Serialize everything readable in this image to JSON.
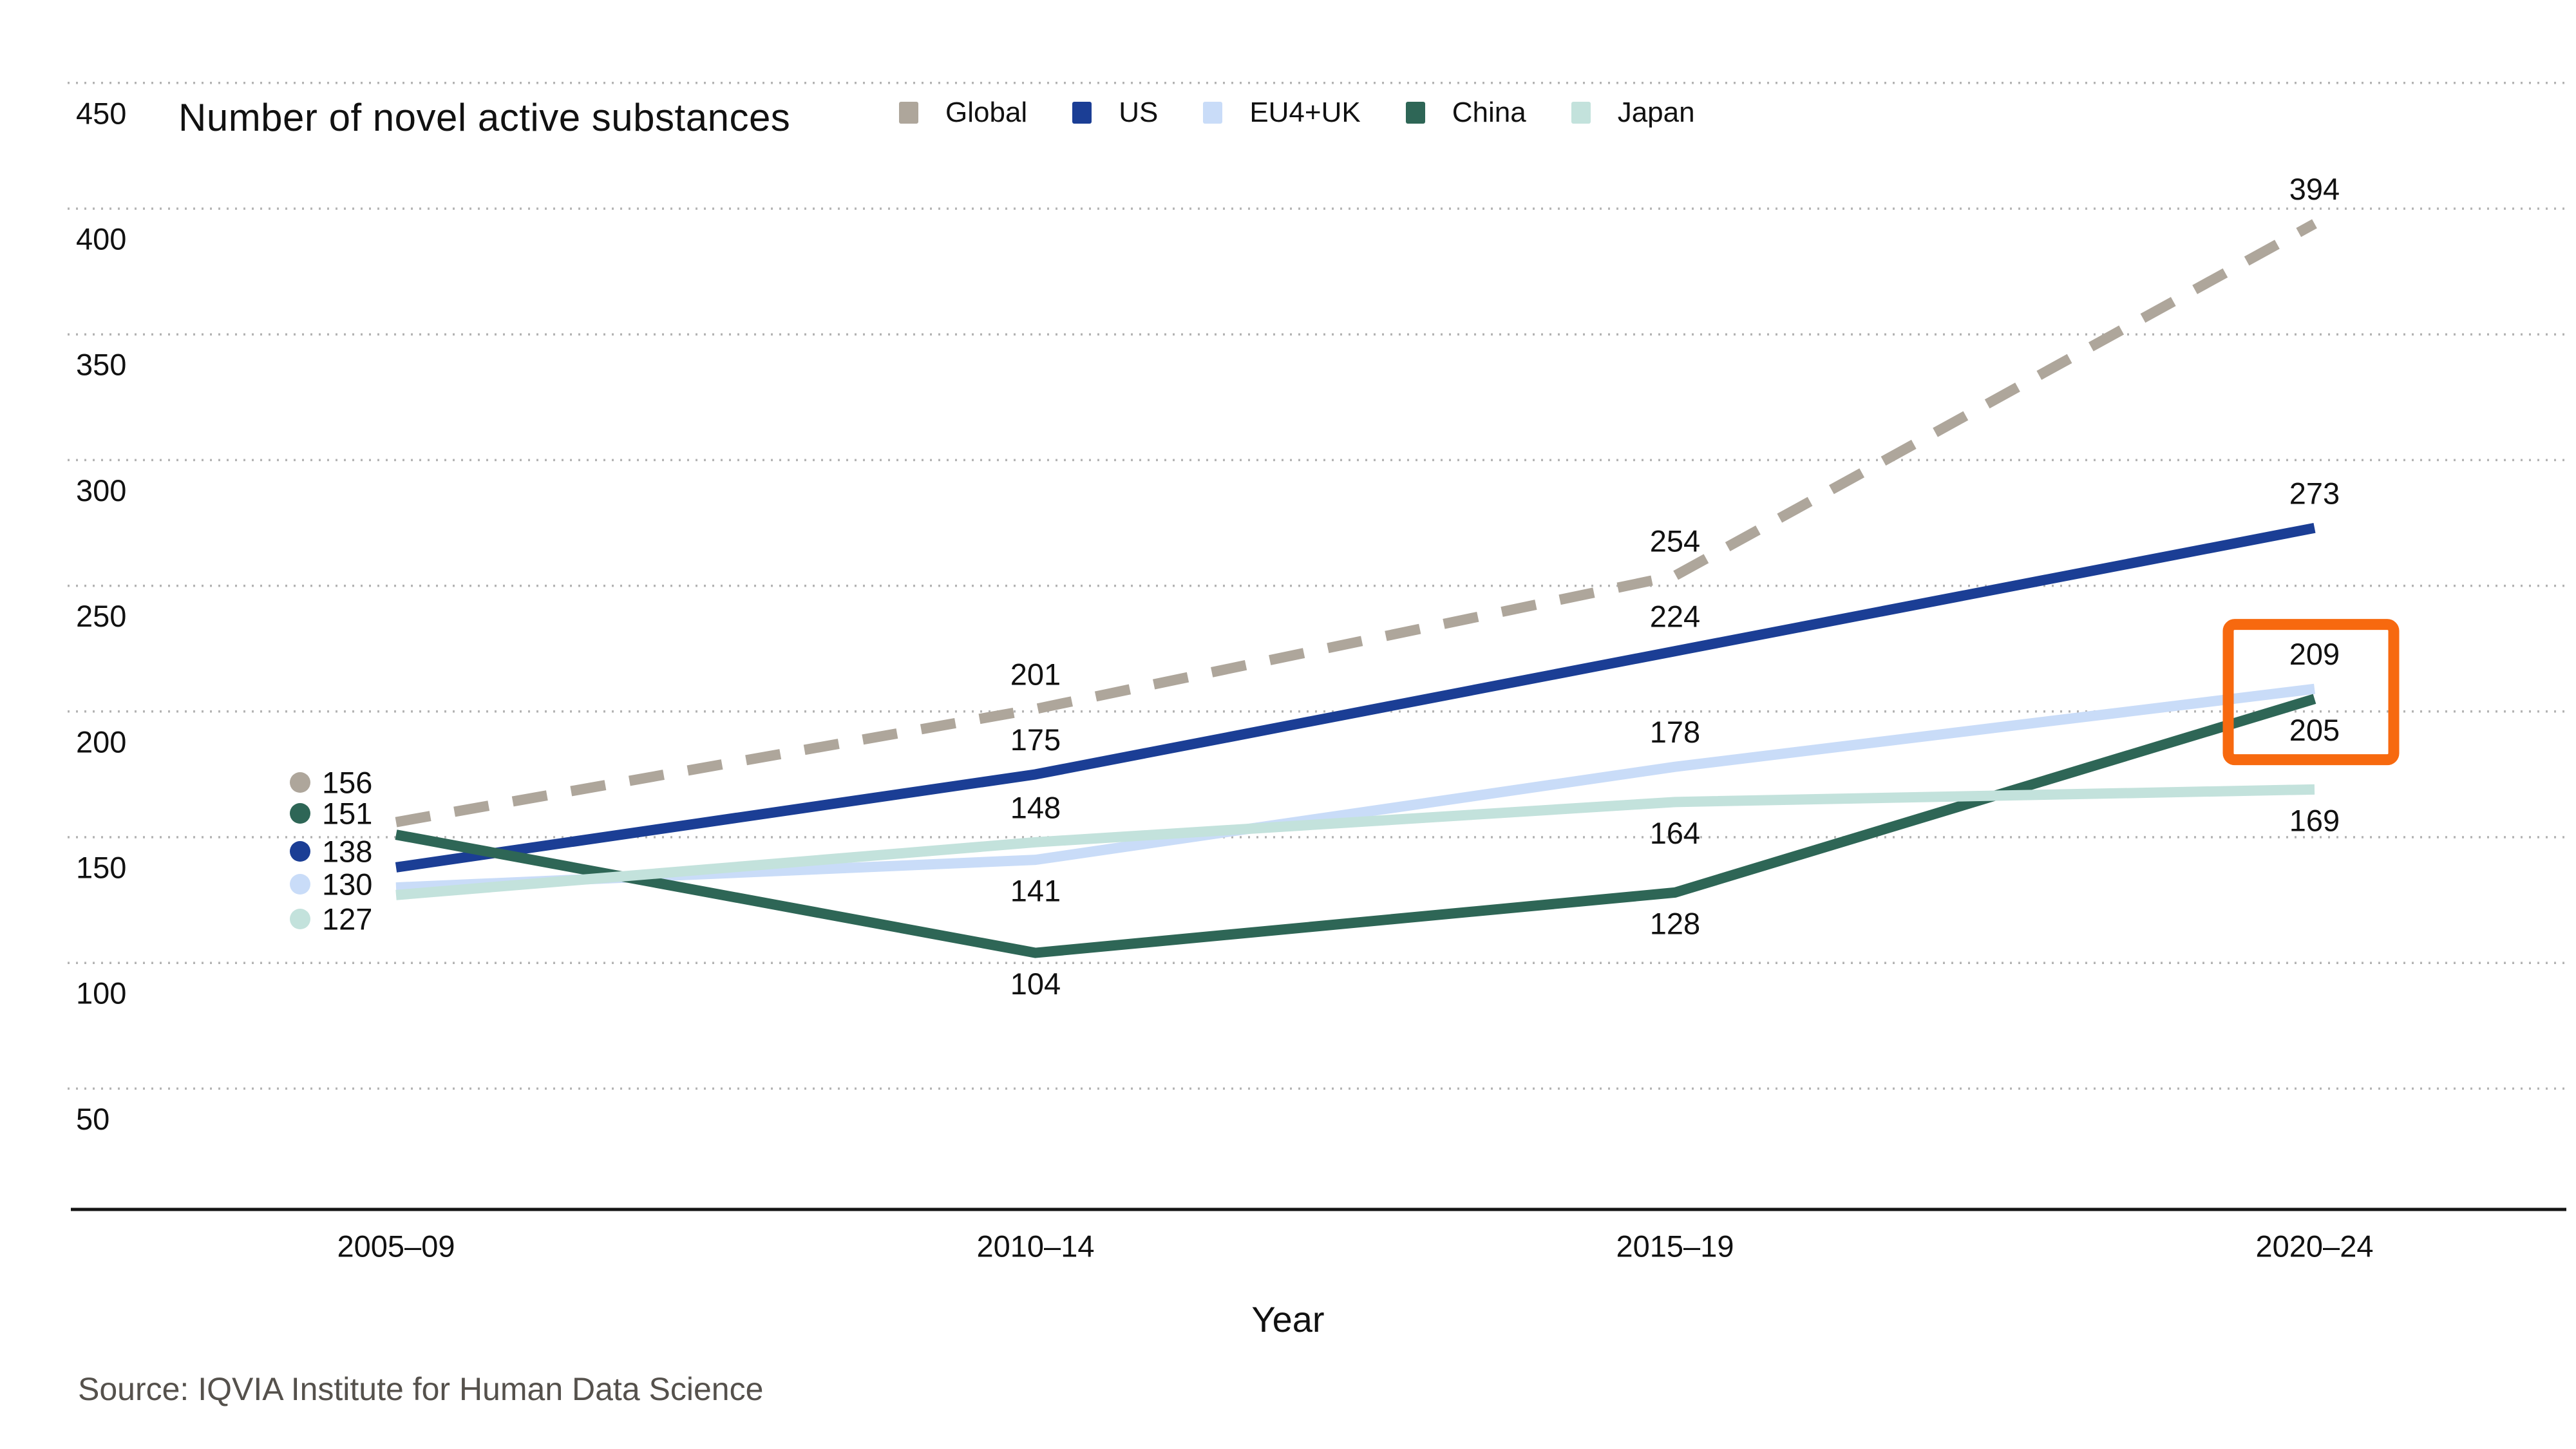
{
  "title": "Number of novel active substances",
  "xlabel": "Year",
  "source": "Source: IQVIA Institute for Human Data Science",
  "colors": {
    "highlight_box": "#F7690F",
    "grid": "#B3B3B3",
    "axis": "#141414",
    "label_text": "#111111",
    "source_text": "#55514C"
  },
  "chart_data": {
    "type": "line",
    "title": "Number of novel active substances",
    "xlabel": "Year",
    "categories": [
      "2005–09",
      "2010–14",
      "2015–19",
      "2020–24"
    ],
    "ylim": [
      50,
      450
    ],
    "yticks": [
      450,
      400,
      350,
      300,
      250,
      200,
      150,
      100,
      50
    ],
    "grid": "horizontal-dotted",
    "legend_position": "top",
    "series": [
      {
        "name": "Global",
        "color": "#AEA69B",
        "style": "dashed",
        "values": [
          156,
          201,
          254,
          394
        ],
        "label_placements": [
          "start",
          "above",
          "above",
          "above"
        ]
      },
      {
        "name": "US",
        "color": "#1B3E95",
        "style": "solid",
        "values": [
          138,
          175,
          224,
          273
        ],
        "label_placements": [
          "start",
          "above",
          "above",
          "above"
        ]
      },
      {
        "name": "EU4+UK",
        "color": "#C9DCF8",
        "style": "solid",
        "values": [
          130,
          141,
          178,
          209
        ],
        "label_placements": [
          "start",
          "below",
          "above",
          "above"
        ]
      },
      {
        "name": "China",
        "color": "#2E6656",
        "style": "solid",
        "values": [
          151,
          104,
          128,
          205
        ],
        "label_placements": [
          "start",
          "below",
          "below",
          "below"
        ]
      },
      {
        "name": "Japan",
        "color": "#C3E2DC",
        "style": "solid",
        "values": [
          127,
          148,
          164,
          169
        ],
        "label_placements": [
          "start",
          "above",
          "below",
          "below"
        ]
      }
    ],
    "highlight_box": {
      "category": "2020–24",
      "values": [
        209,
        205
      ],
      "color": "#F7690F"
    }
  }
}
